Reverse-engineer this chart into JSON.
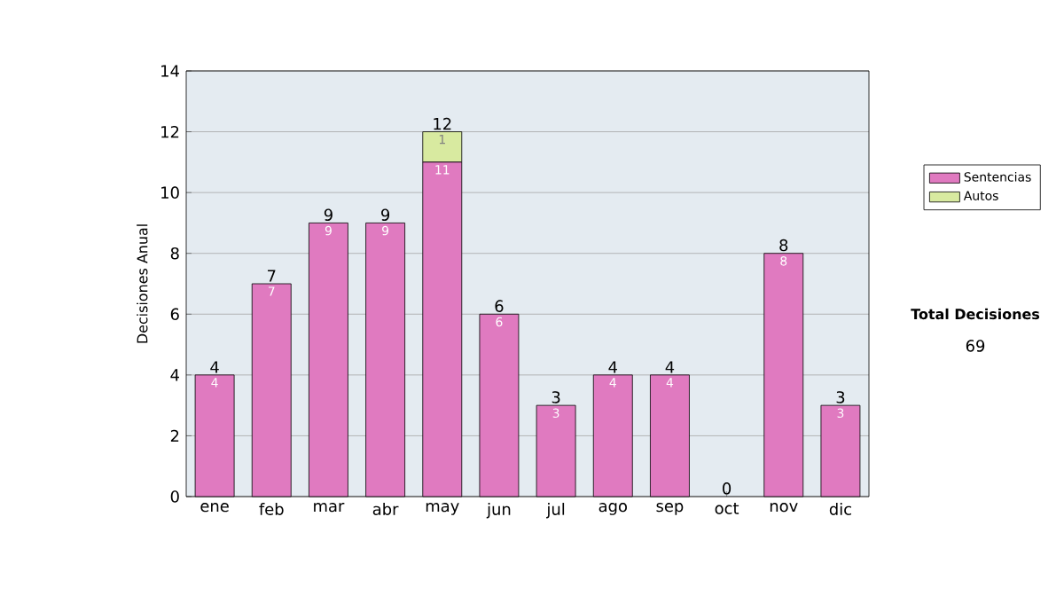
{
  "chart_data": {
    "type": "bar",
    "stacked": true,
    "ylabel": "Decisiones Anual",
    "categories": [
      "ene",
      "feb",
      "mar",
      "abr",
      "may",
      "jun",
      "jul",
      "ago",
      "sep",
      "oct",
      "nov",
      "dic"
    ],
    "series": [
      {
        "name": "Sentencias",
        "color": "#e07ac0",
        "values": [
          4,
          7,
          9,
          9,
          11,
          6,
          3,
          4,
          4,
          0,
          8,
          3
        ],
        "value_labels": [
          "4",
          "7",
          "9",
          "9",
          "11",
          "6",
          "3",
          "4",
          "4",
          null,
          "8",
          "3"
        ]
      },
      {
        "name": "Autos",
        "color": "#d8eaa0",
        "values": [
          0,
          0,
          0,
          0,
          1,
          0,
          0,
          0,
          0,
          0,
          0,
          0
        ],
        "value_labels": [
          null,
          null,
          null,
          null,
          "1",
          null,
          null,
          null,
          null,
          null,
          null,
          null
        ]
      }
    ],
    "totals": [
      "4",
      "7",
      "9",
      "9",
      "12",
      "6",
      "3",
      "4",
      "4",
      "0",
      "8",
      "3"
    ],
    "ylim": [
      0,
      14
    ],
    "yticks": [
      0,
      2,
      4,
      6,
      8,
      10,
      12,
      14
    ],
    "grid": "y",
    "legend": "right",
    "annotations": [
      "Total Decisiones",
      "69"
    ]
  }
}
